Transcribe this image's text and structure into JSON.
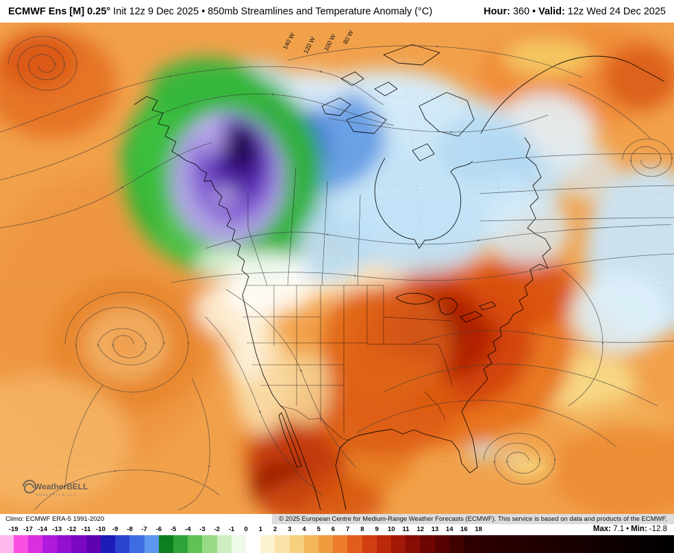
{
  "header": {
    "title_bold": "ECMWF Ens [M] 0.25°",
    "title_rest": " Init 12z 9 Dec 2025 • 850mb Streamlines and Temperature Anomaly (°C)",
    "hour_label": "Hour:",
    "hour_value": "360",
    "separator": "•",
    "valid_label": "Valid:",
    "valid_value": "12z Wed 24 Dec 2025"
  },
  "map": {
    "lon_labels": [
      "140 W",
      "120 W",
      "100 W",
      "80 W"
    ],
    "logo_text": "WeatherBELL",
    "logo_subtext": "ANALYTICS LLC"
  },
  "footer": {
    "climo": "Climo: ECMWF ERA-5 1991-2020",
    "copyright": "© 2025 European Centre for Medium-Range Weather Forecasts (ECMWF). This service is based on data and products of the ECMWF."
  },
  "colorbar": {
    "labels": [
      "-19",
      "-17",
      "-14",
      "-13",
      "-12",
      "-11",
      "-10",
      "-9",
      "-8",
      "-7",
      "-6",
      "-5",
      "-4",
      "-3",
      "-2",
      "-1",
      "0",
      "1",
      "2",
      "3",
      "4",
      "5",
      "6",
      "7",
      "8",
      "9",
      "10",
      "11",
      "12",
      "13",
      "14",
      "16",
      "18"
    ],
    "colors": [
      "#fa4fe3",
      "#d92fe0",
      "#b01adb",
      "#9410cf",
      "#7a08c0",
      "#5f03b0",
      "#1c1cb8",
      "#2b44d0",
      "#3f6ce2",
      "#5e96ef",
      "#0c8020",
      "#2da33a",
      "#5fc156",
      "#97da85",
      "#cdeec0",
      "#eef9e8",
      "#ffffff",
      "#fdf2d0",
      "#fae3a8",
      "#f7cf7e",
      "#f4b659",
      "#f09a3e",
      "#ec7c2b",
      "#e25c1d",
      "#d23f12",
      "#bb290b",
      "#a11807",
      "#880d05",
      "#700604",
      "#590202",
      "#420101",
      "#2e0000"
    ],
    "underflow_color": "#ffb9ef",
    "overflow_gradient": [
      "#2e0000",
      "#000000"
    ]
  },
  "stats": {
    "max_label": "Max:",
    "max_value": "7.1",
    "separator": "•",
    "min_label": "Min:",
    "min_value": "-12.8"
  }
}
